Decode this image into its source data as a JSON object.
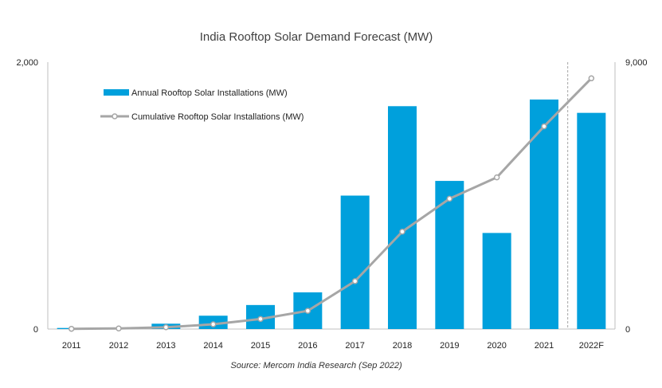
{
  "chart_data": {
    "type": "bar",
    "title": "India Rooftop Solar Demand Forecast (MW)",
    "source": "Source: Mercom India Research (Sep 2022)",
    "categories": [
      "2011",
      "2012",
      "2013",
      "2014",
      "2015",
      "2016",
      "2017",
      "2018",
      "2019",
      "2020",
      "2021",
      "2022F"
    ],
    "series": [
      {
        "name": "Annual Rooftop Solar Installations (MW)",
        "type": "bar",
        "axis": "left",
        "color": "#00A0DC",
        "values": [
          8,
          12,
          40,
          100,
          180,
          275,
          1000,
          1670,
          1110,
          720,
          1720,
          1620
        ]
      },
      {
        "name": "Cumulative Rooftop Solar Installations (MW)",
        "type": "line",
        "axis": "right",
        "color": "#A6A6A6",
        "values": [
          8,
          20,
          60,
          160,
          340,
          615,
          1615,
          3285,
          4395,
          5115,
          6835,
          8455
        ]
      }
    ],
    "left_axis": {
      "min": 0,
      "max": 2000,
      "tick_labels": [
        "0",
        "2,000"
      ]
    },
    "right_axis": {
      "min": 0,
      "max": 9000,
      "tick_labels": [
        "0",
        "9,000"
      ]
    },
    "forecast_divider_after": "2021",
    "legend_position": "top-left"
  }
}
